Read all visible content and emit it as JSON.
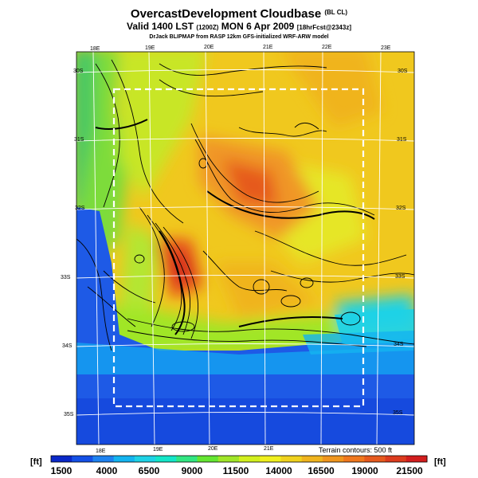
{
  "header": {
    "title": "OvercastDevelopment Cloudbase",
    "title_suffix": "(BL CL)",
    "valid_main": "Valid 1400 LST",
    "valid_utc": "(1200Z)",
    "valid_date": "MON 6 Apr 2009",
    "valid_fcst": "[18hrFcst@2343z]",
    "credit": "DrJack BLIPMAP from RASP 12km GFS-initialized WRF-ARW model"
  },
  "map": {
    "lon_labels_top": [
      "18E",
      "19E",
      "20E",
      "21E",
      "22E",
      "23E"
    ],
    "lon_labels_bottom": [
      "18E",
      "19E",
      "20E",
      "21E"
    ],
    "lat_labels_left": [
      "30S",
      "31S",
      "32S",
      "33S",
      "34S",
      "35S"
    ],
    "lat_labels_right": [
      "30S",
      "31S",
      "32S",
      "33S",
      "34S",
      "35S"
    ],
    "terrain_note": "Terrain contours: 500 ft"
  },
  "colorbar": {
    "unit": "[ft]",
    "labels": [
      "1500",
      "4000",
      "6500",
      "9000",
      "11500",
      "14000",
      "16500",
      "19000",
      "21500"
    ],
    "colors": [
      "#0a28c8",
      "#1450e6",
      "#1e82f0",
      "#14b4f0",
      "#1ed2e6",
      "#14e6c8",
      "#32e682",
      "#64e632",
      "#a0e628",
      "#d2f01e",
      "#f0f01e",
      "#f0d21e",
      "#f0b41e",
      "#f0961e",
      "#f0781e",
      "#e65a1e",
      "#dc3c1e",
      "#d21e1e"
    ]
  },
  "colors": {
    "ocean": "#1e5ae6",
    "grid": "#ffffff",
    "contour": "#000000"
  }
}
